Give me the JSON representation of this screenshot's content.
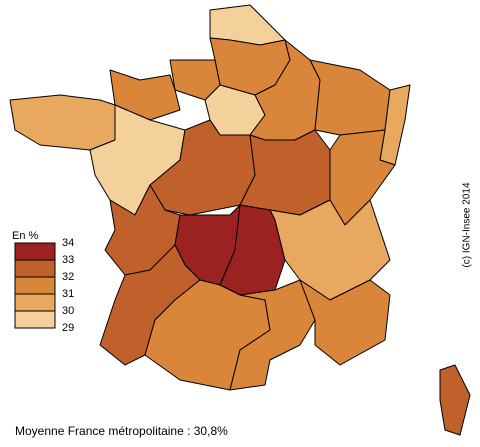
{
  "legend": {
    "title": "En %",
    "ticks": [
      34,
      33,
      32,
      31,
      30,
      29
    ],
    "colors": [
      "#9b2220",
      "#c0602a",
      "#d9853a",
      "#e8a860",
      "#f4d09a"
    ]
  },
  "footer": "Moyenne France métropolitaine : 30,8%",
  "credit": "(c) IGN-Insee 2014"
}
